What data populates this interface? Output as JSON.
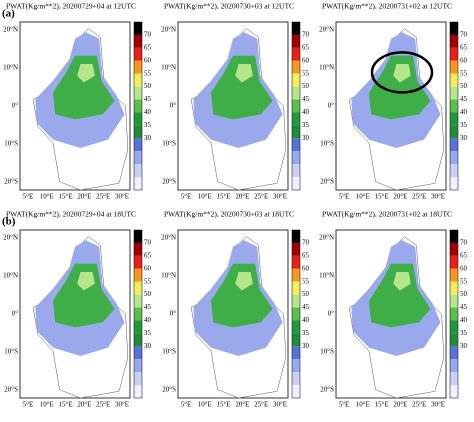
{
  "rows": [
    {
      "label": "(a)",
      "panels": [
        {
          "title": "PWAT(Kg/m**2), 20200729+04 at 12UTC"
        },
        {
          "title": "PWAT(Kg/m**2), 20200730+03 at 12UTC"
        },
        {
          "title": "PWAT(Kg/m**2), 20200731+02 at 12UTC"
        }
      ]
    },
    {
      "label": "(b)",
      "panels": [
        {
          "title": "PWAT(Kg/m**2), 20200729+04 at 18UTC"
        },
        {
          "title": "PWAT(Kg/m**2), 20200730+03 at 18UTC"
        },
        {
          "title": "PWAT(Kg/m**2), 20200731+02 at 18UTC"
        }
      ]
    }
  ],
  "lat_labels": [
    "20°N",
    "10°N",
    "0°",
    "10°S",
    "20°S"
  ],
  "lon_labels": [
    "5°E",
    "10°E",
    "15°E",
    "20°E",
    "25°E",
    "30°E"
  ],
  "colorbar": {
    "labels": [
      "70",
      "65",
      "60",
      "55",
      "50",
      "45",
      "40",
      "35",
      "30"
    ],
    "colors": [
      "#000000",
      "#a50000",
      "#e8201a",
      "#f39a1e",
      "#f5ee5a",
      "#b6e68a",
      "#5cbf4c",
      "#1f9a3a",
      "#1f8b3b",
      "#5a6fd8",
      "#98a8ee",
      "#c8d0f6",
      "#eef0fb"
    ]
  }
}
